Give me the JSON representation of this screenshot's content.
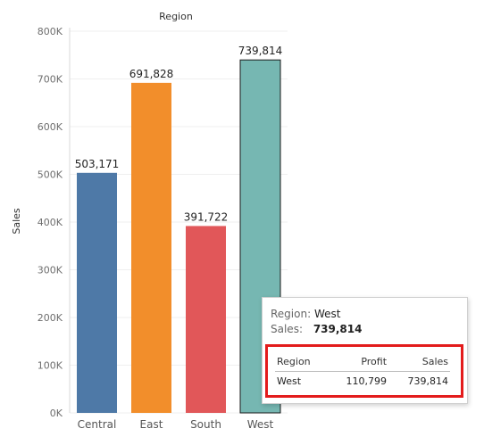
{
  "header": {
    "title": "Region"
  },
  "chart_data": {
    "type": "bar",
    "categories": [
      "Central",
      "East",
      "South",
      "West"
    ],
    "values": [
      503171,
      691828,
      391722,
      739814
    ],
    "data_labels": [
      "503,171",
      "691,828",
      "391,722",
      "739,814"
    ],
    "colors": [
      "#4e79a7",
      "#f28e2b",
      "#e15759",
      "#76b7b2"
    ],
    "selected_category": "West",
    "title": "Region",
    "xlabel": "",
    "ylabel": "Sales",
    "ylim": [
      0,
      800000
    ],
    "yticks": [
      0,
      100000,
      200000,
      300000,
      400000,
      500000,
      600000,
      700000,
      800000
    ],
    "ytick_labels": [
      "0K",
      "100K",
      "200K",
      "300K",
      "400K",
      "500K",
      "600K",
      "700K",
      "800K"
    ],
    "grid": true,
    "legend": "none"
  },
  "tooltip": {
    "region_key": "Region:",
    "region_value": "West",
    "sales_key": "Sales:",
    "sales_value": "739,814",
    "table": {
      "headers": [
        "Region",
        "Profit",
        "Sales"
      ],
      "rows": [
        [
          "West",
          "110,799",
          "739,814"
        ]
      ]
    },
    "highlight_color": "#e31b1b"
  }
}
